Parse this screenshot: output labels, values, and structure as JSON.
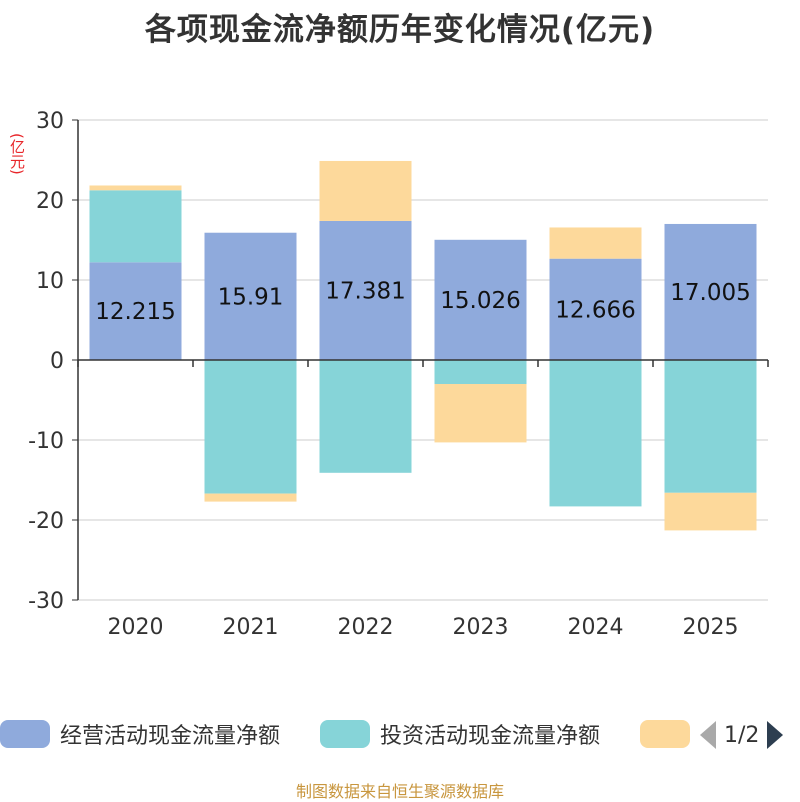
{
  "title": "各项现金流净额历年变化情况(亿元)",
  "unit_label": "(亿元)",
  "source": "制图数据来自恒生聚源数据库",
  "legend": {
    "items": [
      {
        "label": "经营活动现金流量净额",
        "color": "#8faadc"
      },
      {
        "label": "投资活动现金流量净额",
        "color": "#86d4d8"
      },
      {
        "label": "",
        "color": "#fdd99b"
      }
    ],
    "page": "1/2"
  },
  "chart_data": {
    "type": "bar",
    "stacked": true,
    "categories": [
      "2020",
      "2021",
      "2022",
      "2023",
      "2024",
      "2025"
    ],
    "ylim": [
      -30,
      30
    ],
    "yticks": [
      30,
      20,
      10,
      0,
      -10,
      -20,
      -30
    ],
    "grid": true,
    "legend_position": "bottom",
    "series": [
      {
        "name": "经营活动现金流量净额",
        "color": "#8faadc",
        "values": [
          12.215,
          15.91,
          17.381,
          15.026,
          12.666,
          17.005
        ],
        "labels": [
          "12.215",
          "15.91",
          "17.381",
          "15.026",
          "12.666",
          "17.005"
        ]
      },
      {
        "name": "投资活动现金流量净额",
        "color": "#86d4d8",
        "values": [
          9.0,
          -16.7,
          -14.1,
          -3.0,
          -18.3,
          -16.6
        ]
      },
      {
        "name": "",
        "color": "#fdd99b",
        "values": [
          0.6,
          -1.0,
          7.5,
          -7.3,
          3.9,
          -4.7
        ]
      }
    ]
  }
}
